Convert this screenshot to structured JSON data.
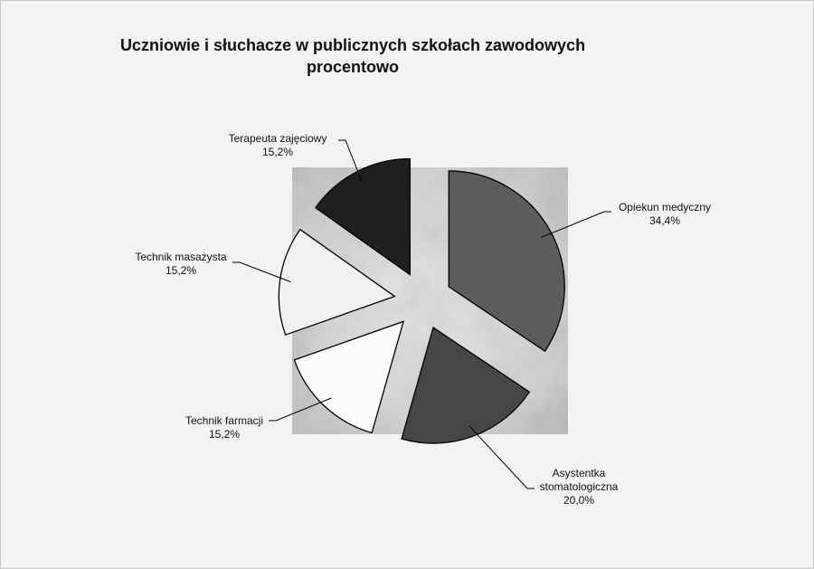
{
  "chart_data": {
    "type": "pie",
    "title": "Uczniowie i słuchacze w publicznych szkołach zawodowych procentowo",
    "categories": [
      "Opiekun medyczny",
      "Asystentka stomatologiczna",
      "Technik farmacji",
      "Technik masażysta",
      "Terapeuta zajęciowy"
    ],
    "values": [
      34.4,
      20.0,
      15.2,
      15.2,
      15.2
    ],
    "value_labels": [
      "34,4%",
      "20,0%",
      "15,2%",
      "15,2%",
      "15,2%"
    ],
    "colors": [
      "#5c5c5c",
      "#464646",
      "#fcfcfc",
      "#f1f1f1",
      "#1f1f1f"
    ]
  }
}
